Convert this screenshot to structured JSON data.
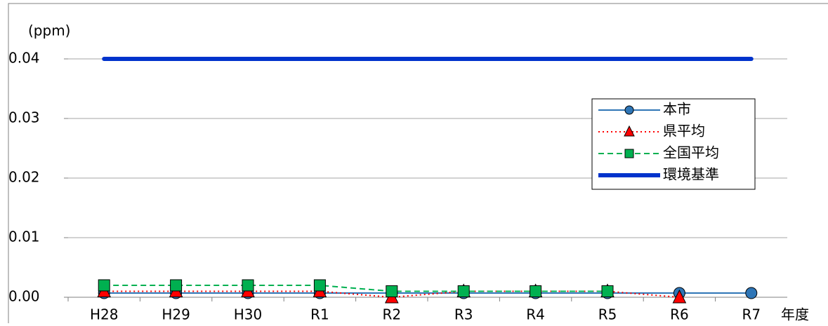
{
  "chart_data": {
    "type": "line",
    "y_axis_label": "(ppm)",
    "x_axis_label": "年度",
    "categories": [
      "H28",
      "H29",
      "H30",
      "R1",
      "R2",
      "R3",
      "R4",
      "R5",
      "R6",
      "R7"
    ],
    "series": [
      {
        "name": "本市",
        "color": "#2e75b6",
        "marker": "circle",
        "dash": "solid",
        "width": 2,
        "values": [
          0.0007,
          0.0007,
          0.0007,
          0.0007,
          0.0007,
          0.0007,
          0.0007,
          0.0007,
          0.0007,
          0.0007
        ]
      },
      {
        "name": "県平均",
        "color": "#ff0000",
        "marker": "triangle",
        "dash": "dotted",
        "width": 2,
        "values": [
          0.001,
          0.001,
          0.001,
          0.001,
          0,
          0.001,
          0.001,
          0.001,
          0,
          null
        ]
      },
      {
        "name": "全国平均",
        "color": "#00b050",
        "marker": "square",
        "dash": "dashed",
        "width": 2,
        "values": [
          0.002,
          0.002,
          0.002,
          0.002,
          0.001,
          0.001,
          0.001,
          0.001,
          null,
          null
        ]
      },
      {
        "name": "環境基準",
        "color": "#0033cc",
        "marker": "none",
        "dash": "solid",
        "width": 6,
        "values": [
          0.04,
          0.04,
          0.04,
          0.04,
          0.04,
          0.04,
          0.04,
          0.04,
          0.04,
          0.04
        ]
      }
    ],
    "ylim": [
      0,
      0.05
    ],
    "yticks": [
      {
        "value": 0,
        "label": "0.00"
      },
      {
        "value": 0.01,
        "label": "0.01"
      },
      {
        "value": 0.02,
        "label": "0.02"
      },
      {
        "value": 0.03,
        "label": "0.03"
      },
      {
        "value": 0.04,
        "label": "0.04"
      }
    ],
    "grid": true
  }
}
